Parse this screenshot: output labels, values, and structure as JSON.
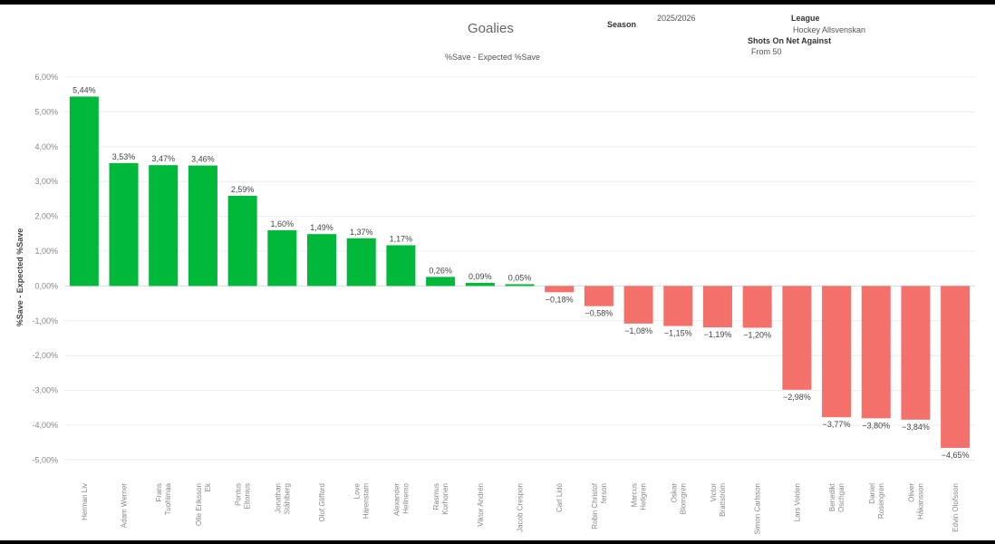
{
  "header": {
    "title": "Goalies",
    "subtitle": "%Save - Expected %Save",
    "season_label": "Season",
    "season_value": "2025/2026",
    "league_label": "League",
    "league_value": "Hockey Allsvenskan",
    "shots_label": "Shots On Net Against",
    "shots_value": "From 50"
  },
  "chart_data": {
    "type": "bar",
    "title": "Goalies",
    "ylabel": "%Save - Expected %Save",
    "xlabel": "",
    "ylim": [
      -5.0,
      6.0
    ],
    "yticks": [
      "6,00%",
      "5,00%",
      "4,00%",
      "3,00%",
      "2,00%",
      "1,00%",
      "0,00%",
      "-1,00%",
      "-2,00%",
      "-3,00%",
      "-4,00%",
      "-5,00%"
    ],
    "categories": [
      "Herman Liv",
      "Adam Werner",
      "Frans Tuohimaa",
      "Olle Eriksson Ek",
      "Pontus Eltonius",
      "Jonathan Ståhlberg",
      "Olof Glifford",
      "Love Härenstam",
      "Alexander Hellnemo",
      "Rasmus Korhonen",
      "Viktor Andrén",
      "Jacob Crespon",
      "Carl Lidö",
      "Robin Christofferson",
      "Marcus Hellgren",
      "Oskar Blomgren",
      "Victor Brattström",
      "Simon Carlsson",
      "Lars Volden",
      "Benedikt Oschgan",
      "Daniel Rosengren",
      "Oliver Håkansson",
      "Edvin Olofsson"
    ],
    "category_lines": [
      [
        "Herman Liv"
      ],
      [
        "Adam Werner"
      ],
      [
        "Frans",
        "Tuohimaa"
      ],
      [
        "Olle Eriksson",
        "Ek"
      ],
      [
        "Pontus",
        "Eltonius"
      ],
      [
        "Jonathan",
        "Ståhlberg"
      ],
      [
        "Olof Glifford"
      ],
      [
        "Love",
        "Härenstam"
      ],
      [
        "Alexander",
        "Hellnemo"
      ],
      [
        "Rasmus",
        "Korhonen"
      ],
      [
        "Viktor Andrén"
      ],
      [
        "Jacob Crespon"
      ],
      [
        "Carl Lidö"
      ],
      [
        "Robin Christof",
        "ferson"
      ],
      [
        "Marcus",
        "Hellgren"
      ],
      [
        "Oskar",
        "Blomgren"
      ],
      [
        "Victor",
        "Brattström"
      ],
      [
        "Simon Carlsson"
      ],
      [
        "Lars Volden"
      ],
      [
        "Benedikt",
        "Oschgan"
      ],
      [
        "Daniel",
        "Rosengren"
      ],
      [
        "Oliver",
        "Håkansson"
      ],
      [
        "Edvin Olofsson"
      ]
    ],
    "values": [
      5.44,
      3.53,
      3.47,
      3.46,
      2.59,
      1.6,
      1.49,
      1.37,
      1.17,
      0.26,
      0.09,
      0.05,
      -0.18,
      -0.58,
      -1.08,
      -1.15,
      -1.19,
      -1.2,
      -2.98,
      -3.77,
      -3.8,
      -3.84,
      -4.65
    ],
    "value_labels": [
      "5,44%",
      "3,53%",
      "3,47%",
      "3,46%",
      "2,59%",
      "1,60%",
      "1,49%",
      "1,37%",
      "1,17%",
      "0,26%",
      "0,09%",
      "0,05%",
      "−0,18%",
      "−0,58%",
      "−1,08%",
      "−1,15%",
      "−1,19%",
      "−1,20%",
      "−2,98%",
      "−3,77%",
      "−3,80%",
      "−3,84%",
      "−4,65%"
    ],
    "grid": true,
    "colors": {
      "positive": "#00b93b",
      "negative": "#f4716b",
      "grid": "#ececec",
      "axis_text": "#888888",
      "label_text": "#444444"
    }
  }
}
